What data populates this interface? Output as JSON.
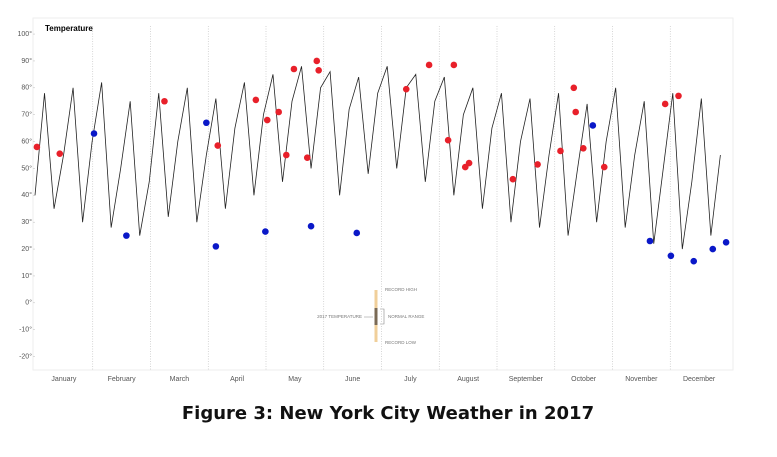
{
  "chart_data": {
    "type": "line",
    "title": "Temperature",
    "caption": "Figure 3: New York City Weather in 2017",
    "categories": [
      "January",
      "February",
      "March",
      "April",
      "May",
      "June",
      "July",
      "August",
      "September",
      "October",
      "November",
      "December"
    ],
    "xlim": [
      1,
      365
    ],
    "ylim": [
      -25,
      103
    ],
    "yticks": [
      {
        "value": -20,
        "label": "-20°"
      },
      {
        "value": -10,
        "label": "-10°"
      },
      {
        "value": 0,
        "label": "0°"
      },
      {
        "value": 10,
        "label": "10°"
      },
      {
        "value": 20,
        "label": "20°"
      },
      {
        "value": 30,
        "label": "30°"
      },
      {
        "value": 40,
        "label": "40°"
      },
      {
        "value": 50,
        "label": "50°"
      },
      {
        "value": 60,
        "label": "60°"
      },
      {
        "value": 70,
        "label": "70°"
      },
      {
        "value": 80,
        "label": "80°"
      },
      {
        "value": 90,
        "label": "90°"
      },
      {
        "value": 100,
        "label": "100°"
      }
    ],
    "series": [
      {
        "name": "2017 TEMPERATURE",
        "color": "#222222",
        "x": [
          1,
          6,
          11,
          16,
          21,
          26,
          31,
          36,
          41,
          46,
          51,
          56,
          61,
          66,
          71,
          76,
          81,
          86,
          91,
          96,
          101,
          106,
          111,
          116,
          121,
          126,
          131,
          136,
          141,
          146,
          151,
          156,
          161,
          166,
          171,
          176,
          181,
          186,
          191,
          196,
          201,
          206,
          211,
          216,
          221,
          226,
          231,
          236,
          241,
          246,
          251,
          256,
          261,
          266,
          271,
          276,
          281,
          286,
          291,
          296,
          301,
          306,
          311,
          316,
          321,
          326,
          331,
          336,
          341,
          346,
          351,
          356,
          361
        ],
        "values": [
          40,
          78,
          35,
          55,
          80,
          30,
          60,
          82,
          28,
          50,
          75,
          25,
          45,
          78,
          32,
          60,
          80,
          30,
          55,
          76,
          35,
          65,
          82,
          40,
          70,
          85,
          45,
          75,
          88,
          50,
          80,
          86,
          40,
          72,
          84,
          48,
          78,
          88,
          50,
          80,
          85,
          45,
          75,
          84,
          40,
          70,
          80,
          35,
          65,
          78,
          30,
          60,
          76,
          28,
          55,
          78,
          25,
          50,
          74,
          30,
          60,
          80,
          28,
          55,
          75,
          22,
          50,
          78,
          20,
          45,
          76,
          25,
          55
        ]
      },
      {
        "name": "RECORD HIGH",
        "color": "#e8202a",
        "x": [
          2,
          14,
          69,
          97,
          117,
          123,
          129,
          133,
          137,
          144,
          149,
          150,
          196,
          208,
          221,
          218,
          227,
          229,
          252,
          265,
          277,
          284,
          285,
          289,
          300,
          332,
          339
        ],
        "values": [
          58,
          55.5,
          75,
          58.5,
          75.5,
          68,
          71,
          55,
          87,
          54,
          90,
          86.5,
          79.5,
          88.5,
          88.5,
          60.5,
          50.5,
          52,
          46,
          51.5,
          56.5,
          80,
          71,
          57.5,
          50.5,
          74,
          77
        ]
      },
      {
        "name": "RECORD LOW",
        "color": "#0a18c8",
        "x": [
          32,
          49,
          91,
          96,
          122,
          146,
          170,
          294,
          324,
          335,
          347,
          357,
          364
        ],
        "values": [
          63,
          25,
          67,
          21,
          26.5,
          28.5,
          26,
          66,
          23,
          17.5,
          15.5,
          20,
          22.5
        ]
      }
    ],
    "legend_note": "NORMAL RANGE"
  }
}
